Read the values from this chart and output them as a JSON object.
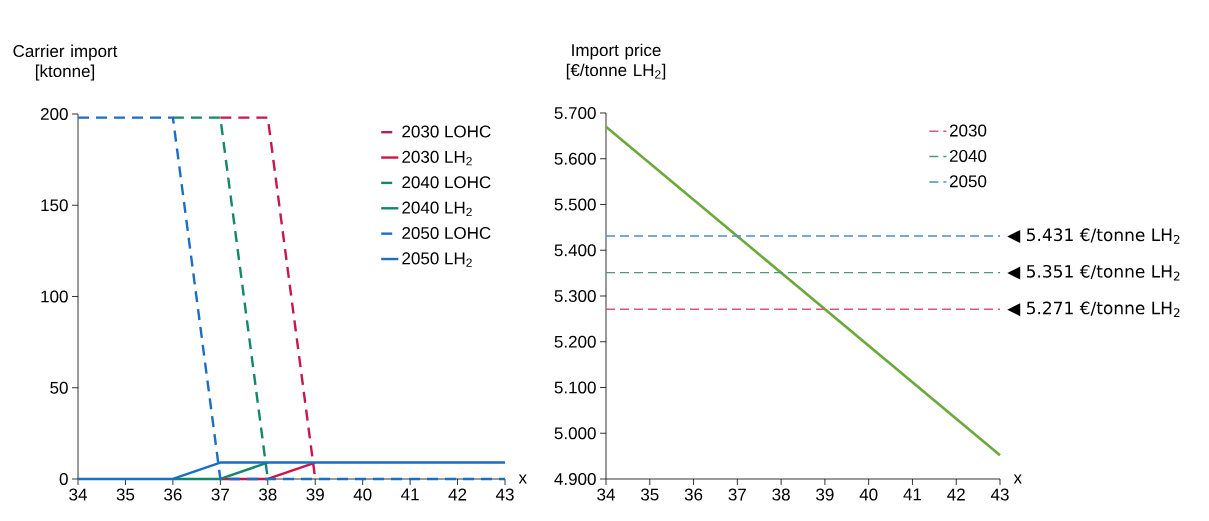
{
  "chart_data": [
    {
      "type": "line",
      "ylabel": "Carrier import [ktonne]",
      "xlabel": "x",
      "x": [
        34,
        35,
        36,
        37,
        38,
        39,
        40,
        41,
        42,
        43
      ],
      "xlim": [
        34,
        43
      ],
      "ylim": [
        0,
        200
      ],
      "xticks": [
        34,
        35,
        36,
        37,
        38,
        39,
        40,
        41,
        42,
        43
      ],
      "yticks": [
        0,
        50,
        100,
        150,
        200
      ],
      "legend": "top right",
      "series": [
        {
          "name": "2030 LOHC",
          "color": "#c8174a",
          "line_style": "dashed",
          "values": [
            null,
            null,
            null,
            198,
            198,
            0,
            null,
            null,
            null,
            null
          ]
        },
        {
          "name": "2030 LH$_{2}$",
          "color": "#c8174a",
          "line_style": "solid",
          "values": [
            null,
            null,
            null,
            0,
            0,
            9,
            null,
            null,
            null,
            null
          ]
        },
        {
          "name": "2040 LOHC",
          "color": "#13876c",
          "line_style": "dashed",
          "values": [
            null,
            null,
            198,
            198,
            0,
            null,
            null,
            null,
            null,
            null
          ]
        },
        {
          "name": "2040 LH$_{2}$",
          "color": "#13876c",
          "line_style": "solid",
          "values": [
            null,
            null,
            0,
            0,
            9,
            null,
            null,
            null,
            null,
            null
          ]
        },
        {
          "name": "2050 LOHC",
          "color": "#1c6ec4",
          "line_style": "dashed",
          "values": [
            198,
            198,
            198,
            0,
            0,
            0,
            0,
            0,
            0,
            0
          ]
        },
        {
          "name": "2050 LH$_{2}$",
          "color": "#1c6ec4",
          "line_style": "solid",
          "values": [
            0,
            0,
            0,
            9,
            9,
            9,
            9,
            9,
            9,
            9
          ]
        }
      ]
    },
    {
      "type": "line",
      "ylabel": "Import price [€/tonne LH$_{2}$]",
      "xlabel": "x",
      "x": [
        34,
        43
      ],
      "xlim": [
        34,
        43
      ],
      "ylim": [
        4.9,
        5.7
      ],
      "xticks": [
        34,
        35,
        36,
        37,
        38,
        39,
        40,
        41,
        42,
        43
      ],
      "yticks": [
        {
          "value": 4.9,
          "label": "4.900"
        },
        {
          "value": 5.0,
          "label": "5.000"
        },
        {
          "value": 5.1,
          "label": "5.100"
        },
        {
          "value": 5.2,
          "label": "5.200"
        },
        {
          "value": 5.3,
          "label": "5.300"
        },
        {
          "value": 5.4,
          "label": "5.400"
        },
        {
          "value": 5.5,
          "label": "5.500"
        },
        {
          "value": 5.6,
          "label": "5.600"
        },
        {
          "value": 5.7,
          "label": "5.700"
        }
      ],
      "legend": "top right",
      "series": [
        {
          "color": "#6aaa3c",
          "line_style": "solid",
          "values": [
            5.67,
            4.952
          ]
        },
        {
          "name": "2030",
          "color": "#d4577c",
          "line_style": "dashed",
          "values": [
            5.271,
            5.271
          ]
        },
        {
          "name": "2040",
          "color": "#4f9a74",
          "line_style": "dashed",
          "values": [
            5.351,
            5.351
          ]
        },
        {
          "name": "2050",
          "color": "#4e8cd0",
          "line_style": "dashed",
          "values": [
            5.431,
            5.431
          ]
        }
      ],
      "annotations": [
        "◀ 5.431 €/tonne LH$_{2}$",
        "◀ 5.351 €/tonne LH$_{2}$",
        "◀ 5.271 €/tonne LH$_{2}$"
      ]
    }
  ]
}
